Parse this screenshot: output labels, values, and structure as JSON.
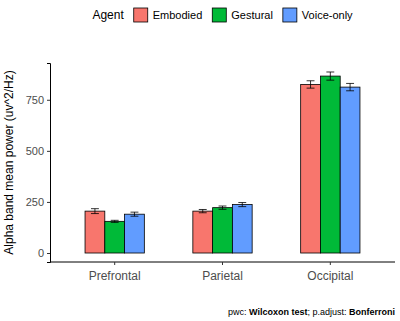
{
  "chart_data": {
    "type": "bar",
    "legend_title": "Agent",
    "y_label": "Alpha band mean power (uv^2/Hz)",
    "caption": "pwc: Wilcoxon test; p.adjust: Bonferroni",
    "categories": [
      "Prefrontal",
      "Parietal",
      "Occipital"
    ],
    "series": [
      {
        "name": "Embodied",
        "color": "#F8766D",
        "values": [
          205,
          205,
          825
        ],
        "errors": [
          12,
          8,
          18
        ]
      },
      {
        "name": "Gestural",
        "color": "#00BA38",
        "values": [
          155,
          222,
          866
        ],
        "errors": [
          5,
          8,
          20
        ]
      },
      {
        "name": "Voice-only",
        "color": "#619CFF",
        "values": [
          190,
          237,
          812
        ],
        "errors": [
          10,
          10,
          18
        ]
      }
    ],
    "ylim": [
      -44,
      930
    ],
    "yticks": [
      0,
      250,
      500,
      750
    ],
    "grid": false,
    "legend": "top"
  }
}
